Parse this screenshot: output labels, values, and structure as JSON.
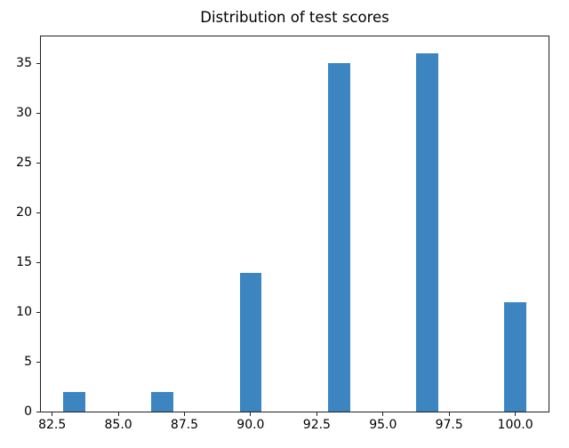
{
  "chart_data": {
    "type": "bar",
    "title": "Distribution of test scores",
    "x": [
      83.333,
      86.667,
      90.0,
      93.333,
      96.667,
      100.0
    ],
    "values": [
      2,
      2,
      14,
      35,
      36,
      11
    ],
    "bar_width": 0.833,
    "bar_color": "#3d85c0",
    "xlabel": "",
    "ylabel": "",
    "xlim": [
      82.04,
      101.29
    ],
    "ylim": [
      0,
      37.8
    ],
    "xticks": {
      "values": [
        82.5,
        85.0,
        87.5,
        90.0,
        92.5,
        95.0,
        97.5,
        100.0
      ],
      "labels": [
        "82.5",
        "85.0",
        "87.5",
        "90.0",
        "92.5",
        "95.0",
        "97.5",
        "100.0"
      ]
    },
    "yticks": {
      "values": [
        0,
        5,
        10,
        15,
        20,
        25,
        30,
        35
      ],
      "labels": [
        "0",
        "5",
        "10",
        "15",
        "20",
        "25",
        "30",
        "35"
      ]
    },
    "grid": false,
    "legend": null,
    "background_color": "#ffffff",
    "text_color": "#000000",
    "spine_color": "#1f1f1f"
  }
}
